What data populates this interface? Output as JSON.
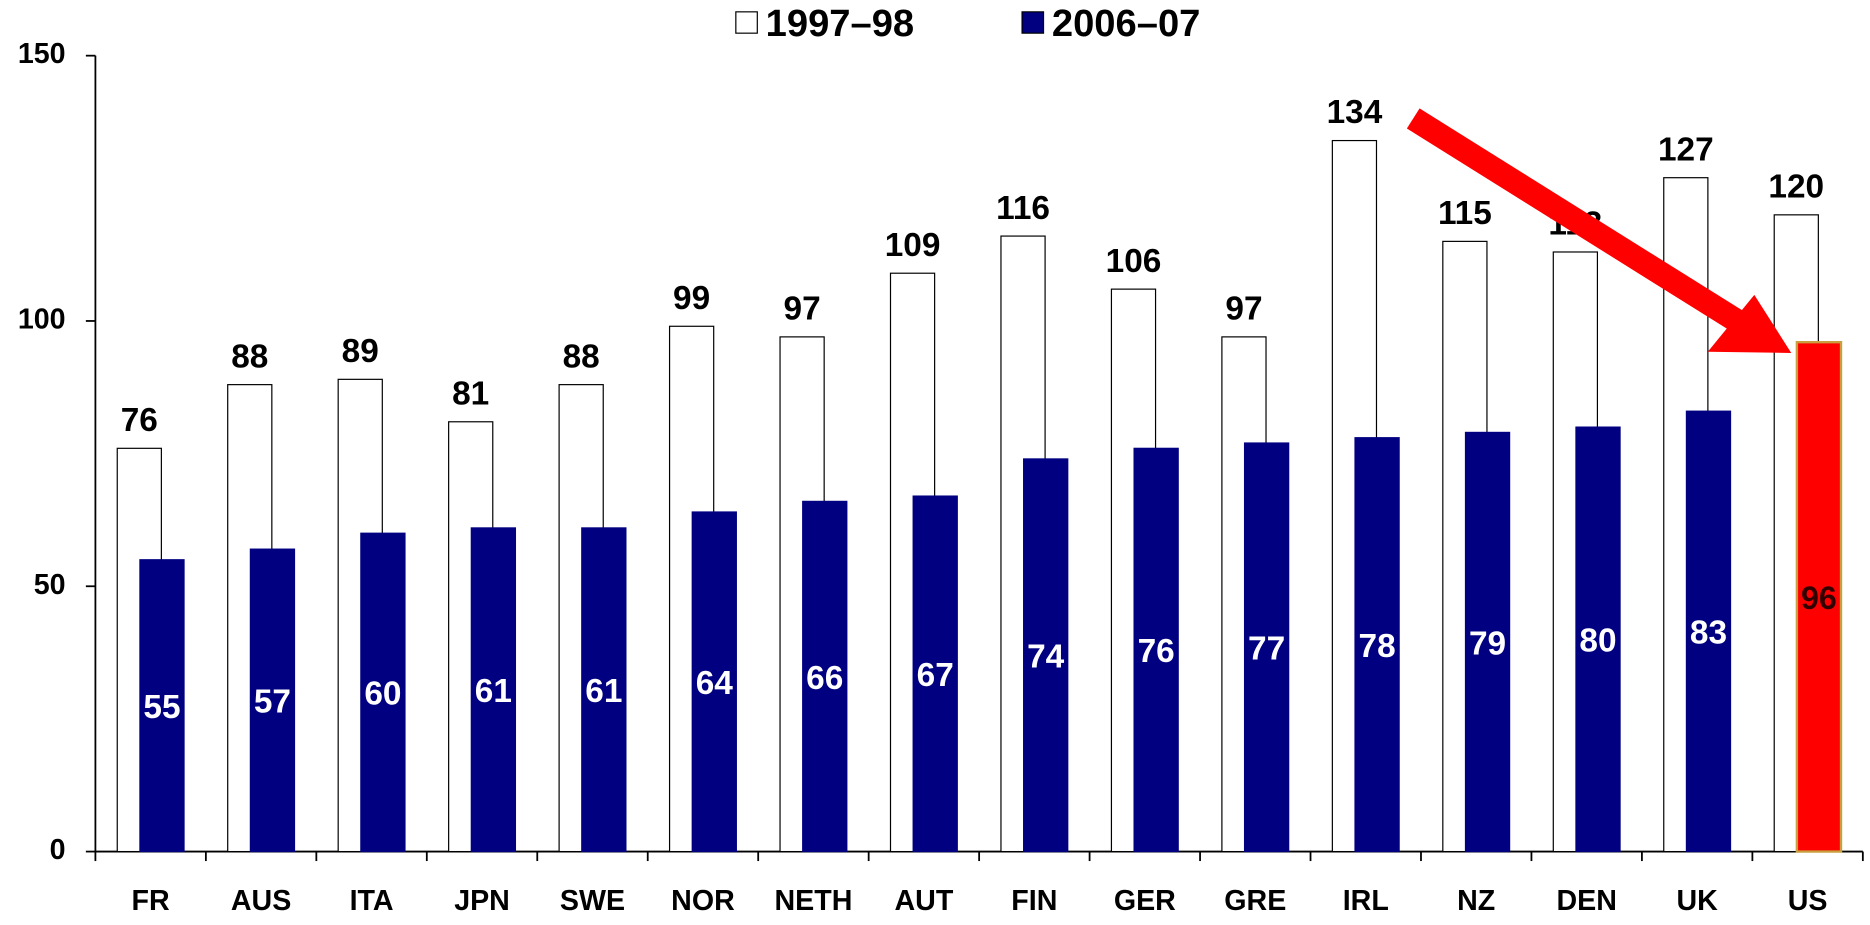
{
  "chart_data": {
    "type": "bar",
    "categories": [
      "FR",
      "AUS",
      "ITA",
      "JPN",
      "SWE",
      "NOR",
      "NETH",
      "AUT",
      "FIN",
      "GER",
      "GRE",
      "IRL",
      "NZ",
      "DEN",
      "UK",
      "US"
    ],
    "series": [
      {
        "name": "1997–98",
        "color": "#ffffff",
        "values": [
          76,
          88,
          89,
          81,
          88,
          99,
          97,
          109,
          116,
          106,
          97,
          134,
          115,
          113,
          127,
          120
        ]
      },
      {
        "name": "2006–07",
        "color": "#000080",
        "values": [
          55,
          57,
          60,
          61,
          61,
          64,
          66,
          67,
          74,
          76,
          77,
          78,
          79,
          80,
          83,
          96
        ],
        "highlight_index": 15,
        "highlight_color": "#ff0000"
      }
    ],
    "ylim": [
      0,
      150
    ],
    "yticks": [
      0,
      50,
      100,
      150
    ],
    "grid": false,
    "legend": "top"
  }
}
